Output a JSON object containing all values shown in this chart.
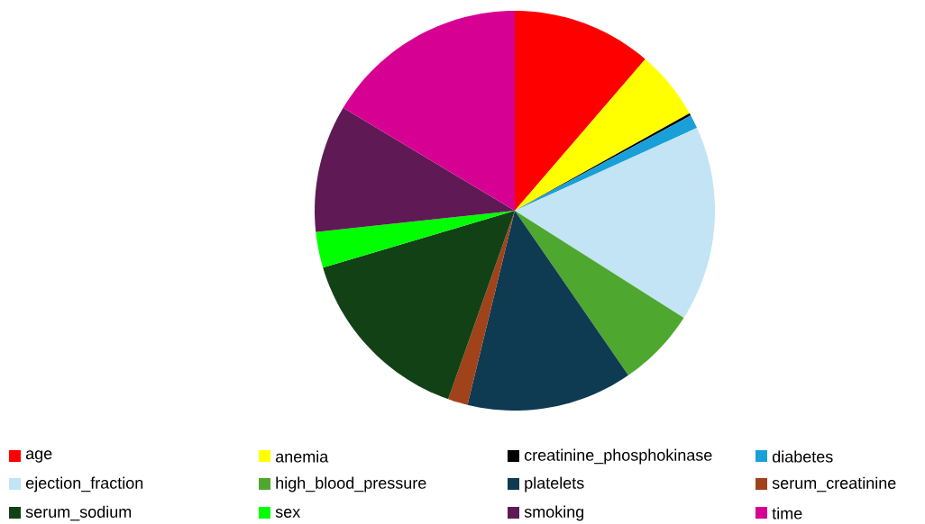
{
  "chart_data": {
    "type": "pie",
    "legend": "bottom",
    "categories": [
      "age",
      "anemia",
      "creatinine_phosphokinase",
      "diabetes",
      "ejection_fraction",
      "high_blood_pressure",
      "platelets",
      "serum_creatinine",
      "serum_sodium",
      "sex",
      "smoking",
      "time"
    ],
    "values": [
      11.3,
      5.6,
      0.2,
      1.1,
      15.8,
      6.4,
      13.4,
      1.6,
      15.0,
      2.9,
      10.3,
      16.4
    ],
    "colors": [
      "#ff0000",
      "#ffff00",
      "#000000",
      "#1aa0d8",
      "#c2e4f4",
      "#4ea72e",
      "#0e3a52",
      "#a0421a",
      "#124116",
      "#00ff00",
      "#5f1a56",
      "#d60093"
    ]
  }
}
